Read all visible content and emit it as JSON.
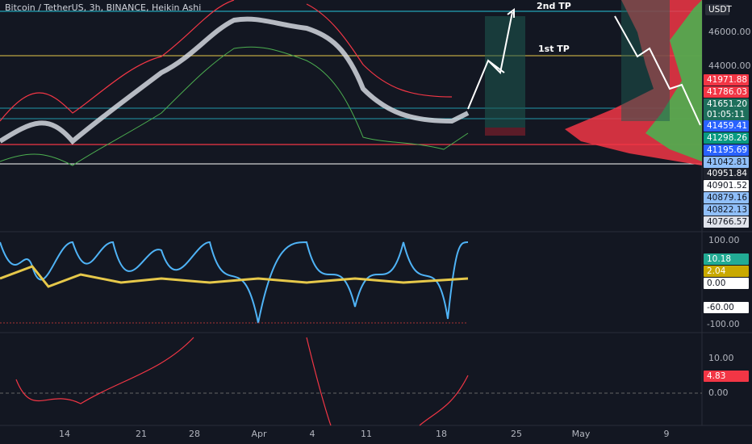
{
  "header": {
    "title": "Bitcoin / TetherUS, 3h, BINANCE, Heikin Ashi"
  },
  "annotations": {
    "second_tp": "2nd TP",
    "first_tp": "1st TP"
  },
  "price_axis": {
    "currency": "USDT",
    "labels": [
      "46000.00",
      "44000.00"
    ],
    "tags": [
      "41971.88",
      "41786.03",
      "41651.20",
      "01:05:11",
      "41459.41",
      "41298.26",
      "41195.69",
      "41042.81",
      "40951.84",
      "40901.52",
      "40879.16",
      "40822.13",
      "40766.57"
    ]
  },
  "oscillator_axis": {
    "labels": [
      "100.00"
    ],
    "tags": [
      "10.18",
      "2.04",
      "0.00",
      "-60.00",
      "-100.00"
    ]
  },
  "lower_axis": {
    "labels": [
      "10.00",
      "0.00"
    ],
    "tags": [
      "4.83"
    ]
  },
  "time_axis": [
    "14",
    "21",
    "28",
    "Apr",
    "4",
    "11",
    "18",
    "25",
    "May",
    "9"
  ]
}
